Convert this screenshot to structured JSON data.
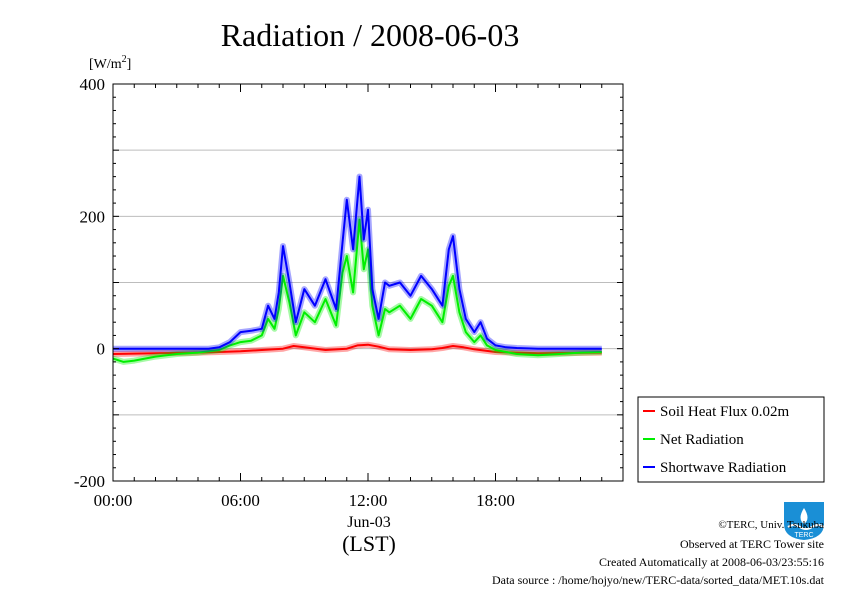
{
  "chart_data": {
    "type": "line",
    "title": "Radiation / 2008-06-03",
    "ylabel": "[W/m2]",
    "ylabel_parts": {
      "base": "[W/m",
      "sup": "2",
      "close": "]"
    },
    "xlabel": "(LST)",
    "date_label": "Jun-03",
    "ylim": [
      -200,
      400
    ],
    "xlim": [
      0,
      24
    ],
    "yticks": [
      {
        "value": -200,
        "label": "-200"
      },
      {
        "value": 0,
        "label": "0"
      },
      {
        "value": 200,
        "label": "200"
      },
      {
        "value": 400,
        "label": "400"
      }
    ],
    "ygrid": [
      -100,
      0,
      100,
      200,
      300
    ],
    "xticks": [
      {
        "value": 0,
        "label": "00:00"
      },
      {
        "value": 6,
        "label": "06:00"
      },
      {
        "value": 12,
        "label": "12:00"
      },
      {
        "value": 18,
        "label": "18:00"
      }
    ],
    "grid": true,
    "legend_position": "bottom-right outside",
    "series": [
      {
        "name": "Soil Heat Flux 0.02m",
        "color": "#ff0000",
        "x": [
          0,
          2,
          4,
          5,
          6,
          7,
          8,
          8.5,
          9,
          10,
          11,
          11.5,
          12,
          12.5,
          13,
          14,
          15,
          15.5,
          16,
          16.5,
          17,
          18,
          20,
          23
        ],
        "y": [
          -8,
          -7,
          -6,
          -5,
          -4,
          -2,
          0,
          4,
          2,
          -2,
          0,
          5,
          6,
          3,
          -1,
          -2,
          -1,
          1,
          4,
          2,
          -1,
          -5,
          -7,
          -6
        ]
      },
      {
        "name": "Net Radiation",
        "color": "#00ee00",
        "x": [
          0,
          0.5,
          1,
          2,
          3,
          4,
          4.5,
          5,
          5.5,
          6,
          6.5,
          7,
          7.3,
          7.6,
          7.8,
          8,
          8.3,
          8.6,
          9,
          9.5,
          10,
          10.5,
          10.8,
          11,
          11.3,
          11.6,
          11.8,
          12,
          12.2,
          12.5,
          12.8,
          13,
          13.5,
          14,
          14.5,
          15,
          15.5,
          15.8,
          16,
          16.3,
          16.6,
          17,
          17.3,
          17.6,
          18,
          18.5,
          19,
          20,
          21,
          22,
          23
        ],
        "y": [
          -15,
          -20,
          -18,
          -12,
          -8,
          -6,
          -4,
          -2,
          5,
          10,
          12,
          20,
          45,
          30,
          60,
          110,
          70,
          20,
          55,
          40,
          75,
          35,
          115,
          140,
          85,
          195,
          120,
          150,
          65,
          20,
          60,
          55,
          65,
          45,
          75,
          65,
          40,
          95,
          110,
          55,
          25,
          10,
          20,
          5,
          -2,
          -5,
          -8,
          -10,
          -8,
          -6,
          -5
        ]
      },
      {
        "name": "Shortwave Radiation",
        "color": "#0000ff",
        "x": [
          0,
          1,
          2,
          3,
          4,
          4.5,
          5,
          5.5,
          6,
          6.5,
          7,
          7.3,
          7.6,
          7.8,
          8,
          8.3,
          8.6,
          9,
          9.5,
          10,
          10.5,
          10.8,
          11,
          11.3,
          11.6,
          11.8,
          12,
          12.2,
          12.5,
          12.8,
          13,
          13.5,
          14,
          14.5,
          15,
          15.5,
          15.8,
          16,
          16.3,
          16.6,
          17,
          17.3,
          17.6,
          18,
          18.5,
          19,
          20,
          21,
          22,
          23
        ],
        "y": [
          0,
          0,
          0,
          0,
          0,
          0,
          2,
          10,
          25,
          27,
          30,
          65,
          45,
          85,
          155,
          100,
          40,
          90,
          65,
          105,
          60,
          160,
          225,
          150,
          260,
          165,
          210,
          90,
          45,
          100,
          95,
          100,
          80,
          110,
          90,
          65,
          150,
          170,
          90,
          45,
          25,
          40,
          15,
          5,
          2,
          1,
          0,
          0,
          0,
          0
        ]
      }
    ]
  },
  "footer": {
    "copyright": "©TERC, Univ. Tsukuba",
    "observed": "Observed at TERC Tower site",
    "created": "Created Automatically at 2008-06-03/23:55:16",
    "source": "Data source : /home/hojyo/new/TERC-data/sorted_data/MET.10s.dat"
  },
  "logo": {
    "text": "TERC",
    "color": "#1a8fd6"
  }
}
